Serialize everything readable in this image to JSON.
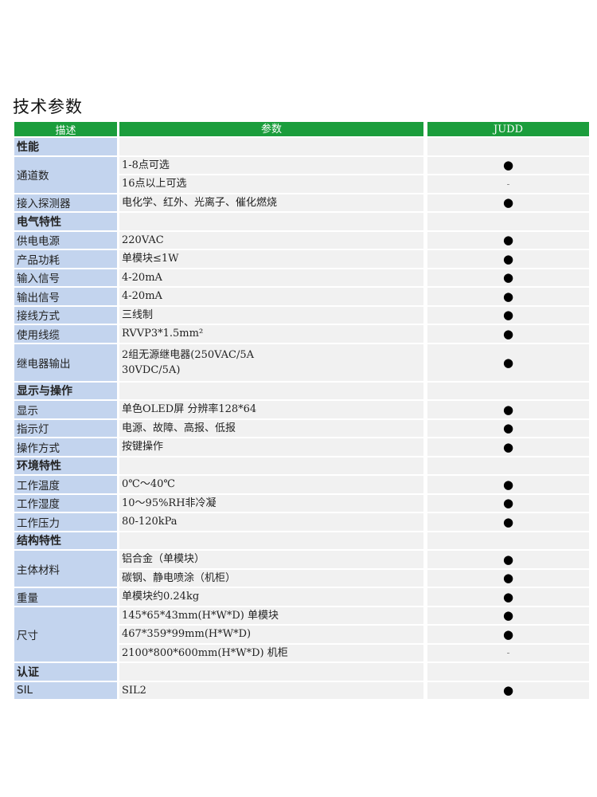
{
  "title": "技术参数",
  "header": {
    "desc": "描述",
    "param": "参数",
    "model": "JUDD"
  },
  "marks": {
    "dot": "●",
    "dash": "-"
  },
  "sections": [
    {
      "name": "性能",
      "rows": [
        {
          "label": "通道数",
          "values": [
            {
              "text": "1-8点可选",
              "mark": "●"
            },
            {
              "text": "16点以上可选",
              "mark": "-"
            }
          ]
        },
        {
          "label": "接入探测器",
          "values": [
            {
              "text": "电化学、红外、光离子、催化燃烧",
              "mark": "●"
            }
          ]
        }
      ]
    },
    {
      "name": "电气特性",
      "rows": [
        {
          "label": "供电电源",
          "values": [
            {
              "text": "220VAC",
              "mark": "●"
            }
          ]
        },
        {
          "label": "产品功耗",
          "values": [
            {
              "text": "单模块≤1W",
              "mark": "●"
            }
          ]
        },
        {
          "label": "输入信号",
          "values": [
            {
              "text": "4-20mA",
              "mark": "●"
            }
          ]
        },
        {
          "label": "输出信号",
          "values": [
            {
              "text": "4-20mA",
              "mark": "●"
            }
          ]
        },
        {
          "label": "接线方式",
          "values": [
            {
              "text": "三线制",
              "mark": "●"
            }
          ]
        },
        {
          "label": "使用线缆",
          "values": [
            {
              "text": "RVVP3*1.5mm²",
              "mark": "●"
            }
          ]
        },
        {
          "label": "继电器输出",
          "values": [
            {
              "text": "2组无源继电器(250VAC/5A\n30VDC/5A)",
              "mark": "●",
              "tall": true
            }
          ]
        }
      ]
    },
    {
      "name": "显示与操作",
      "rows": [
        {
          "label": "显示",
          "values": [
            {
              "text": "单色OLED屏 分辨率128*64",
              "mark": "●"
            }
          ]
        },
        {
          "label": "指示灯",
          "values": [
            {
              "text": "电源、故障、高报、低报",
              "mark": "●"
            }
          ]
        },
        {
          "label": "操作方式",
          "values": [
            {
              "text": "按键操作",
              "mark": "●"
            }
          ]
        }
      ]
    },
    {
      "name": "环境特性",
      "rows": [
        {
          "label": "工作温度",
          "values": [
            {
              "text": "0℃～40℃",
              "mark": "●"
            }
          ]
        },
        {
          "label": "工作湿度",
          "values": [
            {
              "text": "10～95%RH非冷凝",
              "mark": "●"
            }
          ]
        },
        {
          "label": "工作压力",
          "values": [
            {
              "text": "80-120kPa",
              "mark": "●"
            }
          ]
        }
      ]
    },
    {
      "name": "结构特性",
      "rows": [
        {
          "label": "主体材料",
          "values": [
            {
              "text": "铝合金（单模块）",
              "mark": "●"
            },
            {
              "text": "碳钢、静电喷涂（机柜）",
              "mark": "●"
            }
          ]
        },
        {
          "label": "重量",
          "values": [
            {
              "text": "单模块约0.24kg",
              "mark": "●"
            }
          ]
        },
        {
          "label": "尺寸",
          "values": [
            {
              "text": "145*65*43mm(H*W*D)  单模块",
              "mark": "●"
            },
            {
              "text": "467*359*99mm(H*W*D)",
              "mark": "●"
            },
            {
              "text": "2100*800*600mm(H*W*D) 机柜",
              "mark": "-"
            }
          ]
        }
      ]
    },
    {
      "name": "认证",
      "rows": [
        {
          "label": "SIL",
          "values": [
            {
              "text": "SIL2",
              "mark": "●"
            }
          ]
        }
      ]
    }
  ]
}
